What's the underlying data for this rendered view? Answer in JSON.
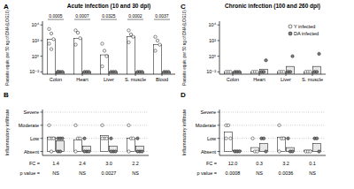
{
  "chart_data": [
    {
      "panel": "A",
      "type": "bar",
      "title": "Acute infection (10 and 30 dpi)",
      "y_label": "Parasite equiv. per 50 ng of DNA (LOG10)",
      "categories": [
        "Colon",
        "Heart",
        "Liver",
        "S. muscle",
        "Blood"
      ],
      "log": "y",
      "ylim": [
        0.005,
        30000
      ],
      "yticks": [
        {
          "value": 0.01,
          "label": "10⁻²"
        },
        {
          "value": 1,
          "label": "10⁰"
        },
        {
          "value": 100,
          "label": "10²"
        },
        {
          "value": 10000,
          "label": "10⁴"
        }
      ],
      "series": [
        {
          "color": "#ffffff",
          "marker": "circle",
          "values": [
            150,
            200,
            1.5,
            300,
            30
          ],
          "points": [
            [
              3000,
              800,
              150,
              40,
              8
            ],
            [
              2000,
              1000,
              200,
              30
            ],
            [
              40,
              5,
              1,
              0.05
            ],
            [
              2000,
              600,
              300,
              60
            ],
            [
              300,
              100,
              30,
              5
            ]
          ]
        },
        {
          "color": "#808080",
          "marker": "circle",
          "values": [
            0.01,
            0.01,
            0.01,
            0.01,
            0.01
          ],
          "points": [
            [
              0.01,
              0.01,
              0.01,
              0.01
            ],
            [
              0.01,
              0.01,
              0.01
            ],
            [
              0.01,
              0.01,
              0.01
            ],
            [
              0.01,
              0.01,
              0.01
            ],
            [
              0.01,
              0.01,
              0.01
            ]
          ]
        }
      ],
      "p_values": [
        "0.0005",
        "0.0007",
        "0.0325",
        "0.0002",
        "0.0037"
      ]
    },
    {
      "panel": "B",
      "type": "bar",
      "y_label": "Inflammatory infiltrate",
      "categories": [
        null,
        null,
        null,
        null
      ],
      "ylim": [
        -0.3,
        3.2
      ],
      "grid": true,
      "yticks": [
        {
          "value": 0,
          "label": "Absent"
        },
        {
          "value": 1,
          "label": "Low"
        },
        {
          "value": 2,
          "label": "Moderate"
        },
        {
          "value": 3,
          "label": "Severe"
        }
      ],
      "series": [
        {
          "color": "#ffffff",
          "marker": "circle",
          "values": [
            1.1,
            0.9,
            1.2,
            1.0
          ],
          "points": [
            [
              2,
              1,
              1,
              1,
              0
            ],
            [
              2,
              1,
              1,
              0
            ],
            [
              2,
              1,
              1,
              1
            ],
            [
              2,
              1,
              1,
              0
            ]
          ]
        },
        {
          "color": "#808080",
          "marker": "circle",
          "values": [
            0.8,
            0.4,
            0.4,
            0.4
          ],
          "points": [
            [
              1,
              1,
              1,
              0,
              0
            ],
            [
              1,
              0,
              0,
              0
            ],
            [
              1,
              0,
              0,
              0
            ],
            [
              1,
              0,
              0,
              0
            ]
          ]
        }
      ],
      "fc_label": "FC =",
      "fc": [
        "1.4",
        "2.4",
        "3.0",
        "2.2"
      ],
      "p_label": "p value =",
      "p_values": [
        "NS",
        "NS",
        "0.0027",
        "NS"
      ]
    },
    {
      "panel": "C",
      "type": "bar",
      "title": "Chronic infection (100 and 260 dpi)",
      "y_label": "Parasite equiv. per 50 ng of DNA (LOG10)",
      "categories": [
        "Colon",
        "Heart",
        "Liver",
        "S. muscle"
      ],
      "log": "y",
      "ylim": [
        0.005,
        30000
      ],
      "legend": "top-right",
      "yticks": [
        {
          "value": 0.01,
          "label": "10⁻²"
        },
        {
          "value": 1,
          "label": "10⁰"
        },
        {
          "value": 100,
          "label": "10²"
        },
        {
          "value": 10000,
          "label": "10⁴"
        }
      ],
      "series": [
        {
          "name": "Y infected",
          "color": "#ffffff",
          "marker": "circle",
          "values": [
            0.01,
            0.01,
            0.01,
            0.01
          ],
          "points": [
            [
              0.01,
              0.01,
              0.01
            ],
            [
              0.01,
              0.01,
              0.01
            ],
            [
              0.01,
              0.01,
              0.01
            ],
            [
              0.01,
              0.01,
              0.01
            ]
          ]
        },
        {
          "name": "DA infected",
          "color": "#808080",
          "marker": "circle",
          "values": [
            0.01,
            0.02,
            0.05,
            0.05
          ],
          "points": [
            [
              0.01,
              0.01,
              0.01
            ],
            [
              0.01,
              0.01,
              0.3
            ],
            [
              0.01,
              0.01,
              1
            ],
            [
              0.01,
              0.01,
              2
            ]
          ]
        }
      ]
    },
    {
      "panel": "D",
      "type": "bar",
      "y_label": "Inflammatory infiltrate",
      "categories": [
        null,
        null,
        null,
        null
      ],
      "ylim": [
        -0.3,
        3.2
      ],
      "grid": true,
      "yticks": [
        {
          "value": 0,
          "label": "Absent"
        },
        {
          "value": 1,
          "label": "Low"
        },
        {
          "value": 2,
          "label": "Moderate"
        },
        {
          "value": 3,
          "label": "Severe"
        }
      ],
      "series": [
        {
          "color": "#ffffff",
          "marker": "circle",
          "values": [
            1.5,
            0.3,
            1.1,
            0.1
          ],
          "points": [
            [
              2,
              2,
              1,
              1
            ],
            [
              1,
              0,
              0
            ],
            [
              2,
              1,
              1,
              0
            ],
            [
              0,
              0,
              0
            ]
          ]
        },
        {
          "color": "#808080",
          "marker": "circle",
          "values": [
            0.1,
            0.6,
            0.3,
            0.6
          ],
          "points": [
            [
              0,
              0,
              0
            ],
            [
              1,
              1,
              0
            ],
            [
              1,
              0,
              0
            ],
            [
              1,
              1,
              0
            ]
          ]
        }
      ],
      "fc_label": "FC =",
      "fc": [
        "12.0",
        "0.3",
        "3.2",
        "0.1"
      ],
      "p_label": "p value =",
      "p_values": [
        "0.0008",
        "NS",
        "0.0036",
        "NS"
      ]
    }
  ]
}
